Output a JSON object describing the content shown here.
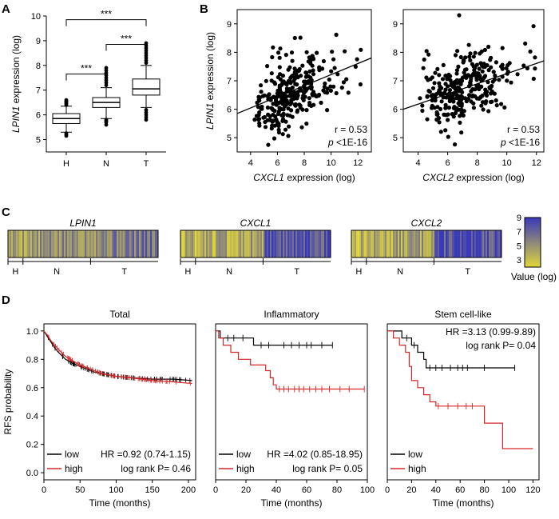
{
  "panels": {
    "A": "A",
    "B": "B",
    "C": "C",
    "D": "D"
  },
  "colors": {
    "km_low": "#000000",
    "km_high": "#d62728",
    "heat_low": "#e2d83a",
    "heat_high": "#3a3ab8"
  },
  "chart_data": [
    {
      "type": "box",
      "panel": "A",
      "ylabel_gene": "LPIN1",
      "ylabel_rest": " expression (log)",
      "ylim": [
        4.5,
        10
      ],
      "yticks": [
        5,
        6,
        7,
        8,
        9,
        10
      ],
      "categories": [
        "H",
        "N",
        "T"
      ],
      "boxes": [
        {
          "name": "H",
          "whisker_low": 5.3,
          "q1": 5.65,
          "median": 5.85,
          "q3": 6.05,
          "whisker_high": 6.35,
          "outliers": [
            5.15,
            5.2,
            5.25,
            6.4,
            6.45,
            6.5,
            6.55,
            6.6
          ]
        },
        {
          "name": "N",
          "whisker_low": 5.85,
          "q1": 6.3,
          "median": 6.5,
          "q3": 6.7,
          "whisker_high": 7.1,
          "outliers": [
            5.6,
            5.7,
            5.75,
            5.8,
            7.2,
            7.3,
            7.4,
            7.5,
            7.6,
            7.7,
            7.8,
            7.9
          ]
        },
        {
          "name": "T",
          "whisker_low": 6.3,
          "q1": 6.8,
          "median": 7.05,
          "q3": 7.45,
          "whisker_high": 8.0,
          "outliers": [
            5.8,
            5.9,
            6.0,
            6.1,
            6.2,
            8.1,
            8.2,
            8.3,
            8.4,
            8.5,
            8.6,
            8.7,
            8.8,
            8.9
          ]
        }
      ],
      "significance": [
        {
          "from": "H",
          "to": "N",
          "label": "***",
          "y": 7.65
        },
        {
          "from": "N",
          "to": "T",
          "label": "***",
          "y": 8.85
        },
        {
          "from": "H",
          "to": "T",
          "label": "***",
          "y": 9.85
        }
      ]
    },
    {
      "type": "scatter",
      "panel": "B",
      "xlabel_gene": "CXCL1",
      "xlabel_rest": " expression (log)",
      "ylabel_gene": "LPIN1",
      "ylabel_rest": " expression (log)",
      "xlim": [
        3,
        13
      ],
      "ylim": [
        4.5,
        9.5
      ],
      "xticks": [
        4,
        6,
        8,
        10,
        12
      ],
      "yticks": [
        5,
        6,
        7,
        8,
        9
      ],
      "fit": {
        "x": [
          3,
          13
        ],
        "y": [
          5.85,
          7.8
        ]
      },
      "r_text": "r = 0.53",
      "p_letter": "p",
      "p_text": " <1E-16",
      "n_points": 300,
      "seed": 11
    },
    {
      "type": "scatter",
      "panel": "B2",
      "xlabel_gene": "CXCL2",
      "xlabel_rest": " expression (log)",
      "xlim": [
        3,
        12.5
      ],
      "ylim": [
        4.5,
        9.5
      ],
      "xticks": [
        4,
        6,
        8,
        10,
        12
      ],
      "yticks": [
        5,
        6,
        7,
        8,
        9
      ],
      "fit": {
        "x": [
          3,
          12.5
        ],
        "y": [
          6.0,
          7.7
        ]
      },
      "r_text": "r = 0.53",
      "p_letter": "p",
      "p_text": " <1E-16",
      "n_points": 300,
      "seed": 29
    },
    {
      "type": "heatmap",
      "panel": "C",
      "strips": [
        {
          "gene": "LPIN1",
          "profile": "flat",
          "seed": 5
        },
        {
          "gene": "CXCL1",
          "profile": "rise",
          "seed": 8
        },
        {
          "gene": "CXCL2",
          "profile": "rise",
          "seed": 13
        }
      ],
      "groups": [
        {
          "name": "H",
          "frac": 0.1
        },
        {
          "name": "N",
          "frac": 0.45
        },
        {
          "name": "T",
          "frac": 0.45
        }
      ],
      "colorbar": {
        "ticks": [
          9,
          7,
          5,
          3
        ],
        "range": [
          2,
          9
        ],
        "label": "Value (log)"
      }
    },
    {
      "type": "km",
      "panel": "D",
      "ylabel": "RFS probability",
      "xlabel": "Time (months)",
      "ylim": [
        -0.05,
        1.05
      ],
      "yticks": [
        0.0,
        0.2,
        0.4,
        0.6,
        0.8,
        1.0
      ],
      "plots": [
        {
          "title": "Total",
          "xlim": [
            0,
            210
          ],
          "xticks": [
            0,
            50,
            100,
            150,
            200
          ],
          "series": [
            {
              "name": "low",
              "color": "#000000",
              "points": [
                [
                  0,
                  1.0
                ],
                [
                  5,
                  0.96
                ],
                [
                  10,
                  0.92
                ],
                [
                  15,
                  0.88
                ],
                [
                  20,
                  0.85
                ],
                [
                  30,
                  0.8
                ],
                [
                  40,
                  0.77
                ],
                [
                  50,
                  0.75
                ],
                [
                  60,
                  0.73
                ],
                [
                  70,
                  0.71
                ],
                [
                  80,
                  0.7
                ],
                [
                  100,
                  0.68
                ],
                [
                  120,
                  0.67
                ],
                [
                  150,
                  0.66
                ],
                [
                  180,
                  0.66
                ],
                [
                  205,
                  0.65
                ]
              ]
            },
            {
              "name": "high",
              "color": "#d62728",
              "points": [
                [
                  0,
                  1.0
                ],
                [
                  5,
                  0.97
                ],
                [
                  10,
                  0.93
                ],
                [
                  15,
                  0.9
                ],
                [
                  20,
                  0.87
                ],
                [
                  30,
                  0.82
                ],
                [
                  40,
                  0.79
                ],
                [
                  50,
                  0.76
                ],
                [
                  60,
                  0.74
                ],
                [
                  70,
                  0.72
                ],
                [
                  80,
                  0.7
                ],
                [
                  100,
                  0.68
                ],
                [
                  120,
                  0.67
                ],
                [
                  150,
                  0.65
                ],
                [
                  180,
                  0.64
                ],
                [
                  205,
                  0.63
                ]
              ]
            }
          ],
          "stats": [
            "HR =0.92 (0.74-1.15)",
            "log rank P= 0.46"
          ],
          "stats_pos": "bottom"
        },
        {
          "title": "Inflammatory",
          "xlim": [
            0,
            100
          ],
          "xticks": [
            0,
            20,
            40,
            60,
            80,
            100
          ],
          "series": [
            {
              "name": "low",
              "color": "#000000",
              "points": [
                [
                  0,
                  1.0
                ],
                [
                  3,
                  1.0
                ],
                [
                  3,
                  0.95
                ],
                [
                  25,
                  0.95
                ],
                [
                  25,
                  0.9
                ],
                [
                  77,
                  0.9
                ]
              ],
              "censor": [
                8,
                12,
                18,
                30,
                35,
                45,
                50,
                55,
                60,
                63,
                70,
                77
              ]
            },
            {
              "name": "high",
              "color": "#d62728",
              "points": [
                [
                  0,
                  1.0
                ],
                [
                  2,
                  1.0
                ],
                [
                  2,
                  0.95
                ],
                [
                  5,
                  0.95
                ],
                [
                  5,
                  0.9
                ],
                [
                  10,
                  0.9
                ],
                [
                  10,
                  0.85
                ],
                [
                  15,
                  0.85
                ],
                [
                  15,
                  0.8
                ],
                [
                  23,
                  0.8
                ],
                [
                  23,
                  0.76
                ],
                [
                  33,
                  0.76
                ],
                [
                  33,
                  0.72
                ],
                [
                  36,
                  0.72
                ],
                [
                  36,
                  0.67
                ],
                [
                  38,
                  0.67
                ],
                [
                  38,
                  0.62
                ],
                [
                  40,
                  0.62
                ],
                [
                  40,
                  0.59
                ],
                [
                  98,
                  0.59
                ]
              ],
              "censor": [
                42,
                45,
                48,
                52,
                55,
                58,
                62,
                66,
                70,
                75,
                82,
                88,
                98
              ]
            }
          ],
          "stats": [
            "HR =4.02 (0.85-18.95)",
            "log rank P= 0.05"
          ],
          "stats_pos": "bottom"
        },
        {
          "title": "Stem cell-like",
          "xlim": [
            0,
            125
          ],
          "xticks": [
            0,
            20,
            40,
            60,
            80,
            100,
            120
          ],
          "series": [
            {
              "name": "low",
              "color": "#000000",
              "points": [
                [
                  0,
                  1.0
                ],
                [
                  12,
                  1.0
                ],
                [
                  12,
                  0.95
                ],
                [
                  20,
                  0.95
                ],
                [
                  20,
                  0.9
                ],
                [
                  25,
                  0.9
                ],
                [
                  25,
                  0.85
                ],
                [
                  30,
                  0.85
                ],
                [
                  30,
                  0.8
                ],
                [
                  32,
                  0.8
                ],
                [
                  32,
                  0.74
                ],
                [
                  105,
                  0.74
                ]
              ],
              "censor": [
                16,
                22,
                35,
                40,
                45,
                52,
                58,
                62,
                66,
                80,
                105
              ]
            },
            {
              "name": "high",
              "color": "#d62728",
              "points": [
                [
                  0,
                  1.0
                ],
                [
                  5,
                  1.0
                ],
                [
                  5,
                  0.95
                ],
                [
                  10,
                  0.95
                ],
                [
                  10,
                  0.9
                ],
                [
                  15,
                  0.9
                ],
                [
                  15,
                  0.85
                ],
                [
                  18,
                  0.85
                ],
                [
                  18,
                  0.75
                ],
                [
                  20,
                  0.75
                ],
                [
                  20,
                  0.65
                ],
                [
                  25,
                  0.65
                ],
                [
                  25,
                  0.6
                ],
                [
                  30,
                  0.6
                ],
                [
                  30,
                  0.55
                ],
                [
                  35,
                  0.55
                ],
                [
                  35,
                  0.5
                ],
                [
                  40,
                  0.5
                ],
                [
                  40,
                  0.47
                ],
                [
                  80,
                  0.47
                ],
                [
                  80,
                  0.35
                ],
                [
                  95,
                  0.35
                ],
                [
                  95,
                  0.17
                ],
                [
                  120,
                  0.17
                ]
              ],
              "censor": [
                42,
                50,
                58,
                65,
                70
              ]
            }
          ],
          "stats": [
            "HR =3.13 (0.99-9.89)",
            "log rank P= 0.04"
          ],
          "stats_pos": "top"
        }
      ]
    }
  ]
}
